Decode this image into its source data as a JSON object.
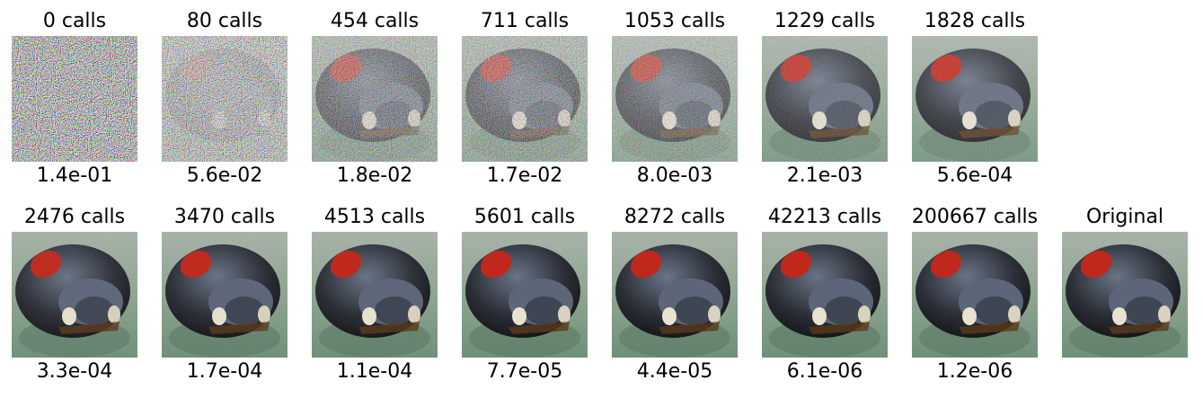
{
  "rows": [
    [
      {
        "title": "0 calls",
        "caption": "1.4e-01"
      },
      {
        "title": "80 calls",
        "caption": "5.6e-02"
      },
      {
        "title": "454 calls",
        "caption": "1.8e-02"
      },
      {
        "title": "711 calls",
        "caption": "1.7e-02"
      },
      {
        "title": "1053 calls",
        "caption": "8.0e-03"
      },
      {
        "title": "1229 calls",
        "caption": "2.1e-03"
      },
      {
        "title": "1828 calls",
        "caption": "5.6e-04"
      }
    ],
    [
      {
        "title": "2476 calls",
        "caption": "3.3e-04"
      },
      {
        "title": "3470 calls",
        "caption": "1.7e-04"
      },
      {
        "title": "4513 calls",
        "caption": "1.1e-04"
      },
      {
        "title": "5601 calls",
        "caption": "7.7e-05"
      },
      {
        "title": "8272 calls",
        "caption": "4.4e-05"
      },
      {
        "title": "42213 calls",
        "caption": "6.1e-06"
      },
      {
        "title": "200667 calls",
        "caption": "1.2e-06"
      },
      {
        "title": "Original"
      }
    ]
  ]
}
